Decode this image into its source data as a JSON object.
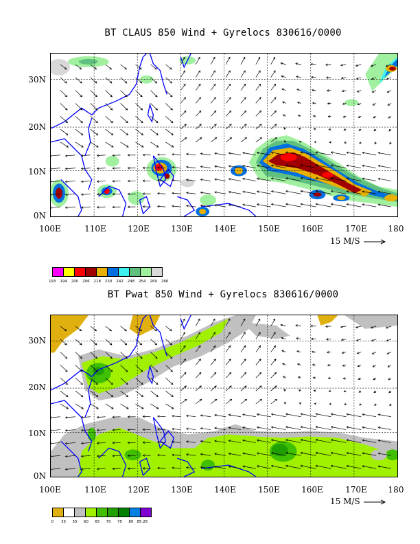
{
  "panel1": {
    "title": "BT CLAUS 850 Wind + Gyrelocs 830616/0000",
    "lat_labels": [
      "30N",
      "20N",
      "10N",
      "0N"
    ],
    "lon_labels": [
      "100E",
      "110E",
      "120E",
      "130E",
      "140E",
      "150E",
      "160E",
      "170E",
      "180"
    ],
    "scale_label": "15 M/S",
    "colorbar": {
      "colors": [
        "#ff00ff",
        "#ffff00",
        "#ff0000",
        "#a00000",
        "#e8b000",
        "#0070e0",
        "#40f0f0",
        "#60c080",
        "#a0f0a0",
        "#d8d8d8"
      ],
      "labels": [
        "193",
        "194",
        "200",
        "206",
        "218",
        "230",
        "242",
        "248",
        "254",
        "260",
        "266"
      ]
    }
  },
  "panel2": {
    "title": "BT Pwat 850 Wind + Gyrelocs 830616/0000",
    "lat_labels": [
      "30N",
      "20N",
      "10N",
      "0N"
    ],
    "lon_labels": [
      "100E",
      "110E",
      "120E",
      "130E",
      "140E",
      "150E",
      "160E",
      "170E",
      "180"
    ],
    "scale_label": "15 M/S",
    "colorbar": {
      "colors": [
        "#e0b010",
        "#ffffff",
        "#c0c0c0",
        "#a0f000",
        "#40c000",
        "#20a000",
        "#008000",
        "#0080e0",
        "#8000d0"
      ],
      "labels": [
        "0",
        "35",
        "55",
        "60",
        "65",
        "70",
        "75",
        "80",
        "85.26"
      ]
    }
  },
  "arrow_color": "#000000",
  "coast_color": "#0000ff"
}
